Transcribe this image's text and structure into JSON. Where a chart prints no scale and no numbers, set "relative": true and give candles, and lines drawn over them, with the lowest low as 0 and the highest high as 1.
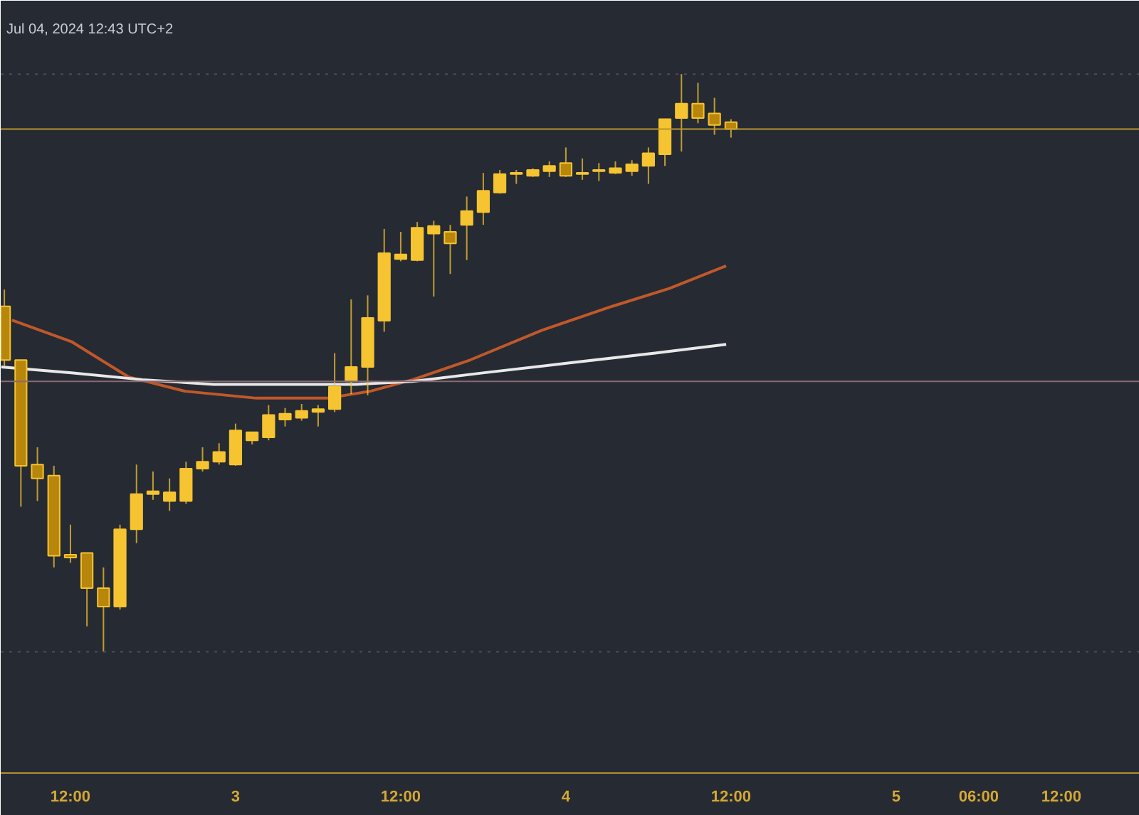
{
  "chart_data": {
    "type": "candlestick",
    "relative": true,
    "tick_labels": "x",
    "color": "#f5c430",
    "annotations": [
      "Jul 04, 2024 12:43 UTC+2"
    ],
    "x": [
      "2024-07-02T07:12",
      "2024-07-02T08:24",
      "2024-07-02T09:36",
      "2024-07-02T10:48",
      "2024-07-02T12:00",
      "2024-07-02T13:12",
      "2024-07-02T14:24",
      "2024-07-02T15:36",
      "2024-07-02T16:48",
      "2024-07-02T18:00",
      "2024-07-02T19:12",
      "2024-07-02T20:24",
      "2024-07-02T21:36",
      "2024-07-02T22:48",
      "2024-07-03T00:00",
      "2024-07-03T01:12",
      "2024-07-03T02:24",
      "2024-07-03T03:36",
      "2024-07-03T04:48",
      "2024-07-03T06:00",
      "2024-07-03T07:12",
      "2024-07-03T08:24",
      "2024-07-03T09:36",
      "2024-07-03T10:48",
      "2024-07-03T12:00",
      "2024-07-03T13:12",
      "2024-07-03T14:24",
      "2024-07-03T15:36",
      "2024-07-03T16:48",
      "2024-07-03T18:00",
      "2024-07-03T19:12",
      "2024-07-03T20:24",
      "2024-07-03T21:36",
      "2024-07-03T22:48",
      "2024-07-04T00:00",
      "2024-07-04T01:12",
      "2024-07-04T02:24",
      "2024-07-04T03:36",
      "2024-07-04T04:48",
      "2024-07-04T06:00",
      "2024-07-04T07:12",
      "2024-07-04T08:24",
      "2024-07-04T09:36",
      "2024-07-04T10:48",
      "2024-07-04T12:00"
    ],
    "ohlc": [
      [
        0.598,
        0.627,
        0.495,
        0.505
      ],
      [
        0.505,
        0.505,
        0.251,
        0.322
      ],
      [
        0.324,
        0.354,
        0.261,
        0.3
      ],
      [
        0.305,
        0.322,
        0.146,
        0.166
      ],
      [
        0.168,
        0.22,
        0.154,
        0.163
      ],
      [
        0.171,
        0.171,
        0.044,
        0.11
      ],
      [
        0.11,
        0.146,
        0.0,
        0.078
      ],
      [
        0.078,
        0.22,
        0.073,
        0.212
      ],
      [
        0.212,
        0.324,
        0.188,
        0.273
      ],
      [
        0.273,
        0.312,
        0.263,
        0.278
      ],
      [
        0.261,
        0.3,
        0.244,
        0.276
      ],
      [
        0.261,
        0.329,
        0.256,
        0.317
      ],
      [
        0.317,
        0.354,
        0.312,
        0.329
      ],
      [
        0.329,
        0.361,
        0.324,
        0.346
      ],
      [
        0.324,
        0.395,
        0.322,
        0.383
      ],
      [
        0.366,
        0.38,
        0.359,
        0.38
      ],
      [
        0.371,
        0.427,
        0.366,
        0.41
      ],
      [
        0.402,
        0.422,
        0.39,
        0.412
      ],
      [
        0.405,
        0.429,
        0.4,
        0.417
      ],
      [
        0.415,
        0.427,
        0.39,
        0.42
      ],
      [
        0.42,
        0.517,
        0.415,
        0.459
      ],
      [
        0.468,
        0.61,
        0.446,
        0.493
      ],
      [
        0.493,
        0.617,
        0.444,
        0.578
      ],
      [
        0.573,
        0.732,
        0.554,
        0.69
      ],
      [
        0.68,
        0.727,
        0.676,
        0.688
      ],
      [
        0.678,
        0.744,
        0.676,
        0.734
      ],
      [
        0.724,
        0.746,
        0.615,
        0.737
      ],
      [
        0.727,
        0.739,
        0.654,
        0.707
      ],
      [
        0.739,
        0.788,
        0.678,
        0.763
      ],
      [
        0.761,
        0.829,
        0.739,
        0.798
      ],
      [
        0.795,
        0.834,
        0.793,
        0.827
      ],
      [
        0.827,
        0.834,
        0.81,
        0.829
      ],
      [
        0.824,
        0.837,
        0.822,
        0.834
      ],
      [
        0.832,
        0.849,
        0.822,
        0.841
      ],
      [
        0.846,
        0.873,
        0.822,
        0.824
      ],
      [
        0.827,
        0.854,
        0.817,
        0.829
      ],
      [
        0.832,
        0.846,
        0.815,
        0.834
      ],
      [
        0.829,
        0.849,
        0.827,
        0.837
      ],
      [
        0.832,
        0.851,
        0.824,
        0.844
      ],
      [
        0.841,
        0.873,
        0.81,
        0.863
      ],
      [
        0.861,
        0.922,
        0.841,
        0.922
      ],
      [
        0.924,
        1.0,
        0.866,
        0.949
      ],
      [
        0.949,
        0.985,
        0.915,
        0.924
      ],
      [
        0.932,
        0.959,
        0.895,
        0.912
      ],
      [
        0.917,
        0.922,
        0.89,
        0.905
      ]
    ],
    "series": [
      {
        "type": "line",
        "color": "#c0582a",
        "x": [
          "2024-07-02T07:45",
          "2024-07-02T12:04",
          "2024-07-02T16:12",
          "2024-07-02T20:20",
          "2024-07-03T01:31",
          "2024-07-03T06:41",
          "2024-07-03T09:47",
          "2024-07-03T12:53",
          "2024-07-03T17:02",
          "2024-07-03T22:12",
          "2024-07-04T03:22",
          "2024-07-04T07:31",
          "2024-07-04T11:39"
        ],
        "values": [
          0.574,
          0.537,
          0.476,
          0.451,
          0.439,
          0.439,
          0.451,
          0.471,
          0.505,
          0.556,
          0.598,
          0.629,
          0.668
        ]
      },
      {
        "type": "line",
        "color": "#e8e8e8",
        "x": [
          "2024-07-02T06:58",
          "2024-07-02T12:04",
          "2024-07-02T17:14",
          "2024-07-02T22:24",
          "2024-07-03T03:35",
          "2024-07-03T08:45",
          "2024-07-03T12:53",
          "2024-07-03T18:04",
          "2024-07-04T00:16",
          "2024-07-04T06:29",
          "2024-07-04T11:39"
        ],
        "values": [
          0.493,
          0.483,
          0.471,
          0.463,
          0.463,
          0.463,
          0.468,
          0.483,
          0.5,
          0.517,
          0.532
        ]
      }
    ],
    "ref_lines": [
      {
        "axis": "y",
        "value": 0.905,
        "color": "#b8952e",
        "line_style": "solid"
      },
      {
        "axis": "y",
        "value": 0.468,
        "color": "#8a6a72",
        "line_style": "solid"
      },
      {
        "axis": "y",
        "value": 1.0,
        "color": "#4a4e58",
        "line_style": "dotted"
      },
      {
        "axis": "y",
        "value": 0.0,
        "color": "#4a4e58",
        "line_style": "dotted"
      }
    ],
    "xlim": [
      "2024-07-02T06:56",
      "2024-07-05T17:42"
    ],
    "xticks": [
      {
        "value": "2024-07-02T12:00",
        "label": "12:00"
      },
      {
        "value": "2024-07-03T00:00",
        "label": "3"
      },
      {
        "value": "2024-07-03T12:00",
        "label": "12:00"
      },
      {
        "value": "2024-07-04T00:00",
        "label": "4"
      },
      {
        "value": "2024-07-04T12:00",
        "label": "12:00"
      },
      {
        "value": "2024-07-05T00:00",
        "label": "5"
      },
      {
        "value": "2024-07-05T06:00",
        "label": "06:00"
      },
      {
        "value": "2024-07-05T12:00",
        "label": "12:00"
      }
    ]
  }
}
